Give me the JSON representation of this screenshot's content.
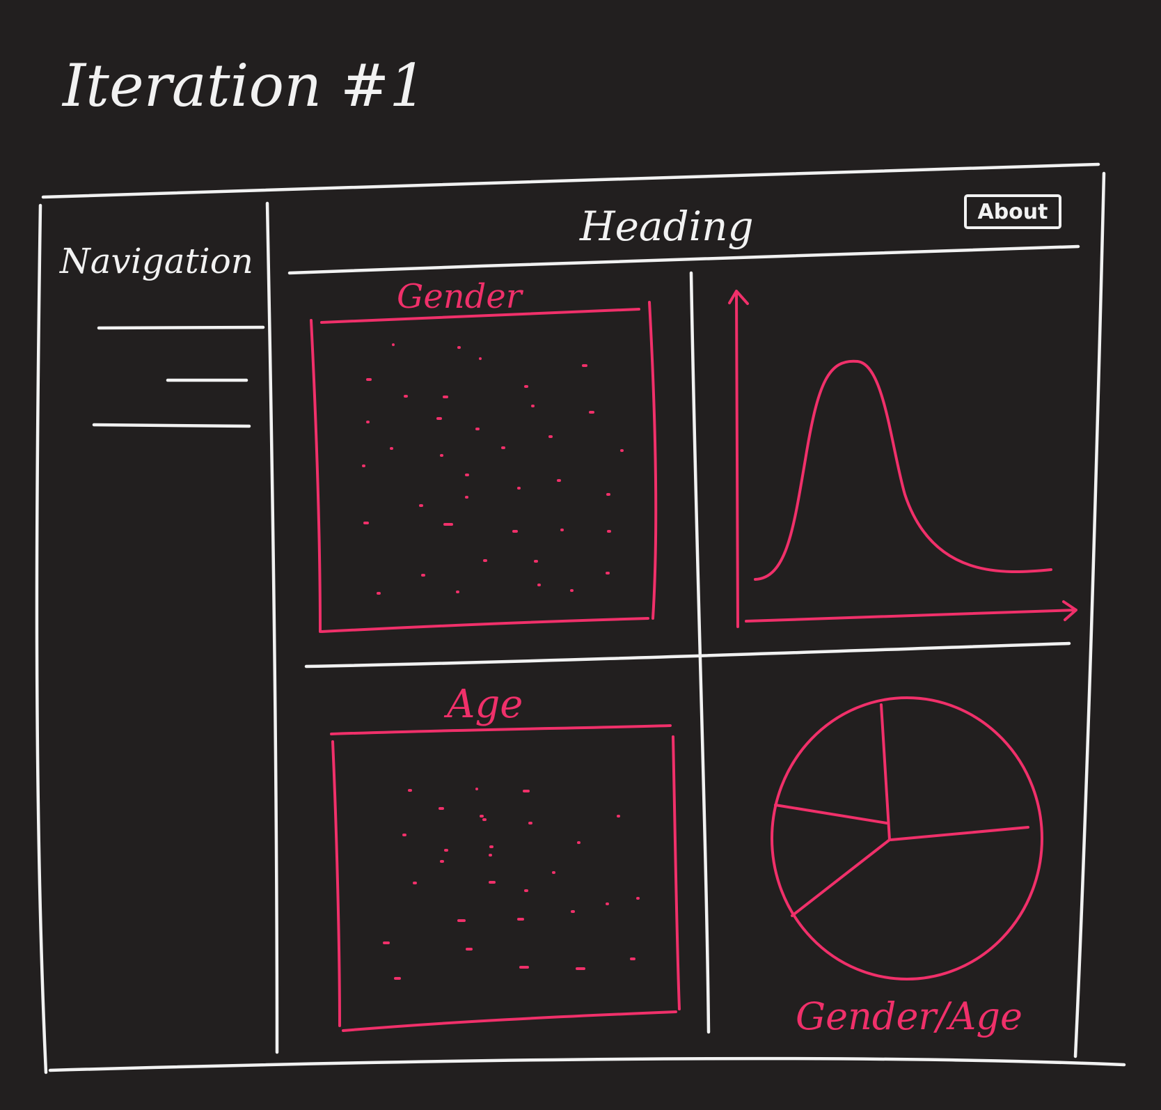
{
  "page": {
    "title": "Iteration #1"
  },
  "sidebar": {
    "label": "Navigation",
    "items": [
      "",
      "",
      ""
    ]
  },
  "header": {
    "title": "Heading",
    "about_button": "About"
  },
  "panels": {
    "gender": {
      "title": "Gender",
      "kind": "scatter"
    },
    "distribution": {
      "kind": "curve"
    },
    "age": {
      "title": "Age",
      "kind": "scatter"
    },
    "gender_age": {
      "title": "Gender/Age",
      "kind": "pie"
    }
  },
  "colors": {
    "background": "#221f1f",
    "ink": "#f2f2f2",
    "accent": "#f0306a"
  }
}
